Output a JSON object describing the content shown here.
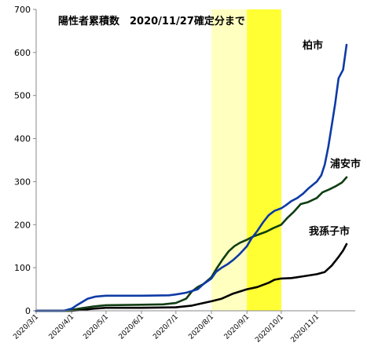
{
  "chart_data": {
    "type": "line",
    "title": "陽性者累積数　2020/11/27確定分まで",
    "xlabel": "",
    "ylabel": "",
    "x_range": [
      "2020-03-01",
      "2020-11-27"
    ],
    "ylim": [
      0,
      700
    ],
    "yticks": [
      0,
      100,
      200,
      300,
      400,
      500,
      600,
      700
    ],
    "xticks": [
      "2020/3/1",
      "2020/4/1",
      "2020/5/1",
      "2020/6/1",
      "2020/7/1",
      "2020/8/1",
      "2020/9/1",
      "2020/10/1",
      "2020/11/1"
    ],
    "grid": false,
    "highlight_bands": [
      {
        "from": "2020-08-01",
        "to": "2020-09-01",
        "color": "#ffffc0"
      },
      {
        "from": "2020-09-01",
        "to": "2020-10-01",
        "color": "#ffff33"
      }
    ],
    "series": [
      {
        "name": "柏市",
        "color": "#0d3aa6",
        "points": [
          [
            "2020-03-01",
            0
          ],
          [
            "2020-03-25",
            0
          ],
          [
            "2020-04-01",
            5
          ],
          [
            "2020-04-05",
            12
          ],
          [
            "2020-04-10",
            20
          ],
          [
            "2020-04-15",
            28
          ],
          [
            "2020-04-22",
            33
          ],
          [
            "2020-05-01",
            35
          ],
          [
            "2020-06-01",
            35
          ],
          [
            "2020-06-25",
            36
          ],
          [
            "2020-07-01",
            38
          ],
          [
            "2020-07-10",
            42
          ],
          [
            "2020-07-20",
            50
          ],
          [
            "2020-07-25",
            62
          ],
          [
            "2020-08-01",
            75
          ],
          [
            "2020-08-05",
            90
          ],
          [
            "2020-08-10",
            100
          ],
          [
            "2020-08-15",
            108
          ],
          [
            "2020-08-20",
            118
          ],
          [
            "2020-08-25",
            130
          ],
          [
            "2020-09-01",
            150
          ],
          [
            "2020-09-05",
            168
          ],
          [
            "2020-09-10",
            185
          ],
          [
            "2020-09-15",
            205
          ],
          [
            "2020-09-20",
            222
          ],
          [
            "2020-09-25",
            232
          ],
          [
            "2020-10-01",
            238
          ],
          [
            "2020-10-05",
            245
          ],
          [
            "2020-10-10",
            255
          ],
          [
            "2020-10-15",
            262
          ],
          [
            "2020-10-20",
            272
          ],
          [
            "2020-10-25",
            285
          ],
          [
            "2020-11-01",
            300
          ],
          [
            "2020-11-05",
            315
          ],
          [
            "2020-11-08",
            340
          ],
          [
            "2020-11-11",
            380
          ],
          [
            "2020-11-14",
            430
          ],
          [
            "2020-11-17",
            480
          ],
          [
            "2020-11-20",
            540
          ],
          [
            "2020-11-24",
            560
          ],
          [
            "2020-11-27",
            618
          ]
        ]
      },
      {
        "name": "浦安市",
        "color": "#0f3d12",
        "points": [
          [
            "2020-03-01",
            0
          ],
          [
            "2020-03-31",
            0
          ],
          [
            "2020-04-01",
            2
          ],
          [
            "2020-04-10",
            6
          ],
          [
            "2020-04-20",
            10
          ],
          [
            "2020-05-01",
            13
          ],
          [
            "2020-06-01",
            14
          ],
          [
            "2020-06-20",
            15
          ],
          [
            "2020-07-01",
            18
          ],
          [
            "2020-07-10",
            28
          ],
          [
            "2020-07-15",
            45
          ],
          [
            "2020-07-20",
            55
          ],
          [
            "2020-07-25",
            62
          ],
          [
            "2020-08-01",
            78
          ],
          [
            "2020-08-06",
            100
          ],
          [
            "2020-08-11",
            120
          ],
          [
            "2020-08-16",
            138
          ],
          [
            "2020-08-21",
            150
          ],
          [
            "2020-08-26",
            158
          ],
          [
            "2020-09-01",
            165
          ],
          [
            "2020-09-06",
            172
          ],
          [
            "2020-09-12",
            178
          ],
          [
            "2020-09-18",
            184
          ],
          [
            "2020-09-24",
            192
          ],
          [
            "2020-10-01",
            200
          ],
          [
            "2020-10-06",
            215
          ],
          [
            "2020-10-12",
            230
          ],
          [
            "2020-10-18",
            248
          ],
          [
            "2020-10-24",
            252
          ],
          [
            "2020-11-01",
            262
          ],
          [
            "2020-11-06",
            275
          ],
          [
            "2020-11-12",
            282
          ],
          [
            "2020-11-18",
            290
          ],
          [
            "2020-11-23",
            298
          ],
          [
            "2020-11-27",
            310
          ]
        ]
      },
      {
        "name": "我孫子市",
        "color": "#000000",
        "points": [
          [
            "2020-03-01",
            0
          ],
          [
            "2020-04-01",
            0
          ],
          [
            "2020-04-10",
            2
          ],
          [
            "2020-04-20",
            5
          ],
          [
            "2020-05-01",
            7
          ],
          [
            "2020-06-01",
            7
          ],
          [
            "2020-07-01",
            8
          ],
          [
            "2020-07-15",
            12
          ],
          [
            "2020-07-25",
            18
          ],
          [
            "2020-08-01",
            22
          ],
          [
            "2020-08-10",
            28
          ],
          [
            "2020-08-20",
            40
          ],
          [
            "2020-09-01",
            50
          ],
          [
            "2020-09-10",
            55
          ],
          [
            "2020-09-20",
            65
          ],
          [
            "2020-09-25",
            72
          ],
          [
            "2020-10-01",
            75
          ],
          [
            "2020-10-10",
            76
          ],
          [
            "2020-10-20",
            80
          ],
          [
            "2020-11-01",
            85
          ],
          [
            "2020-11-08",
            90
          ],
          [
            "2020-11-14",
            105
          ],
          [
            "2020-11-20",
            125
          ],
          [
            "2020-11-24",
            140
          ],
          [
            "2020-11-27",
            155
          ]
        ]
      }
    ]
  }
}
